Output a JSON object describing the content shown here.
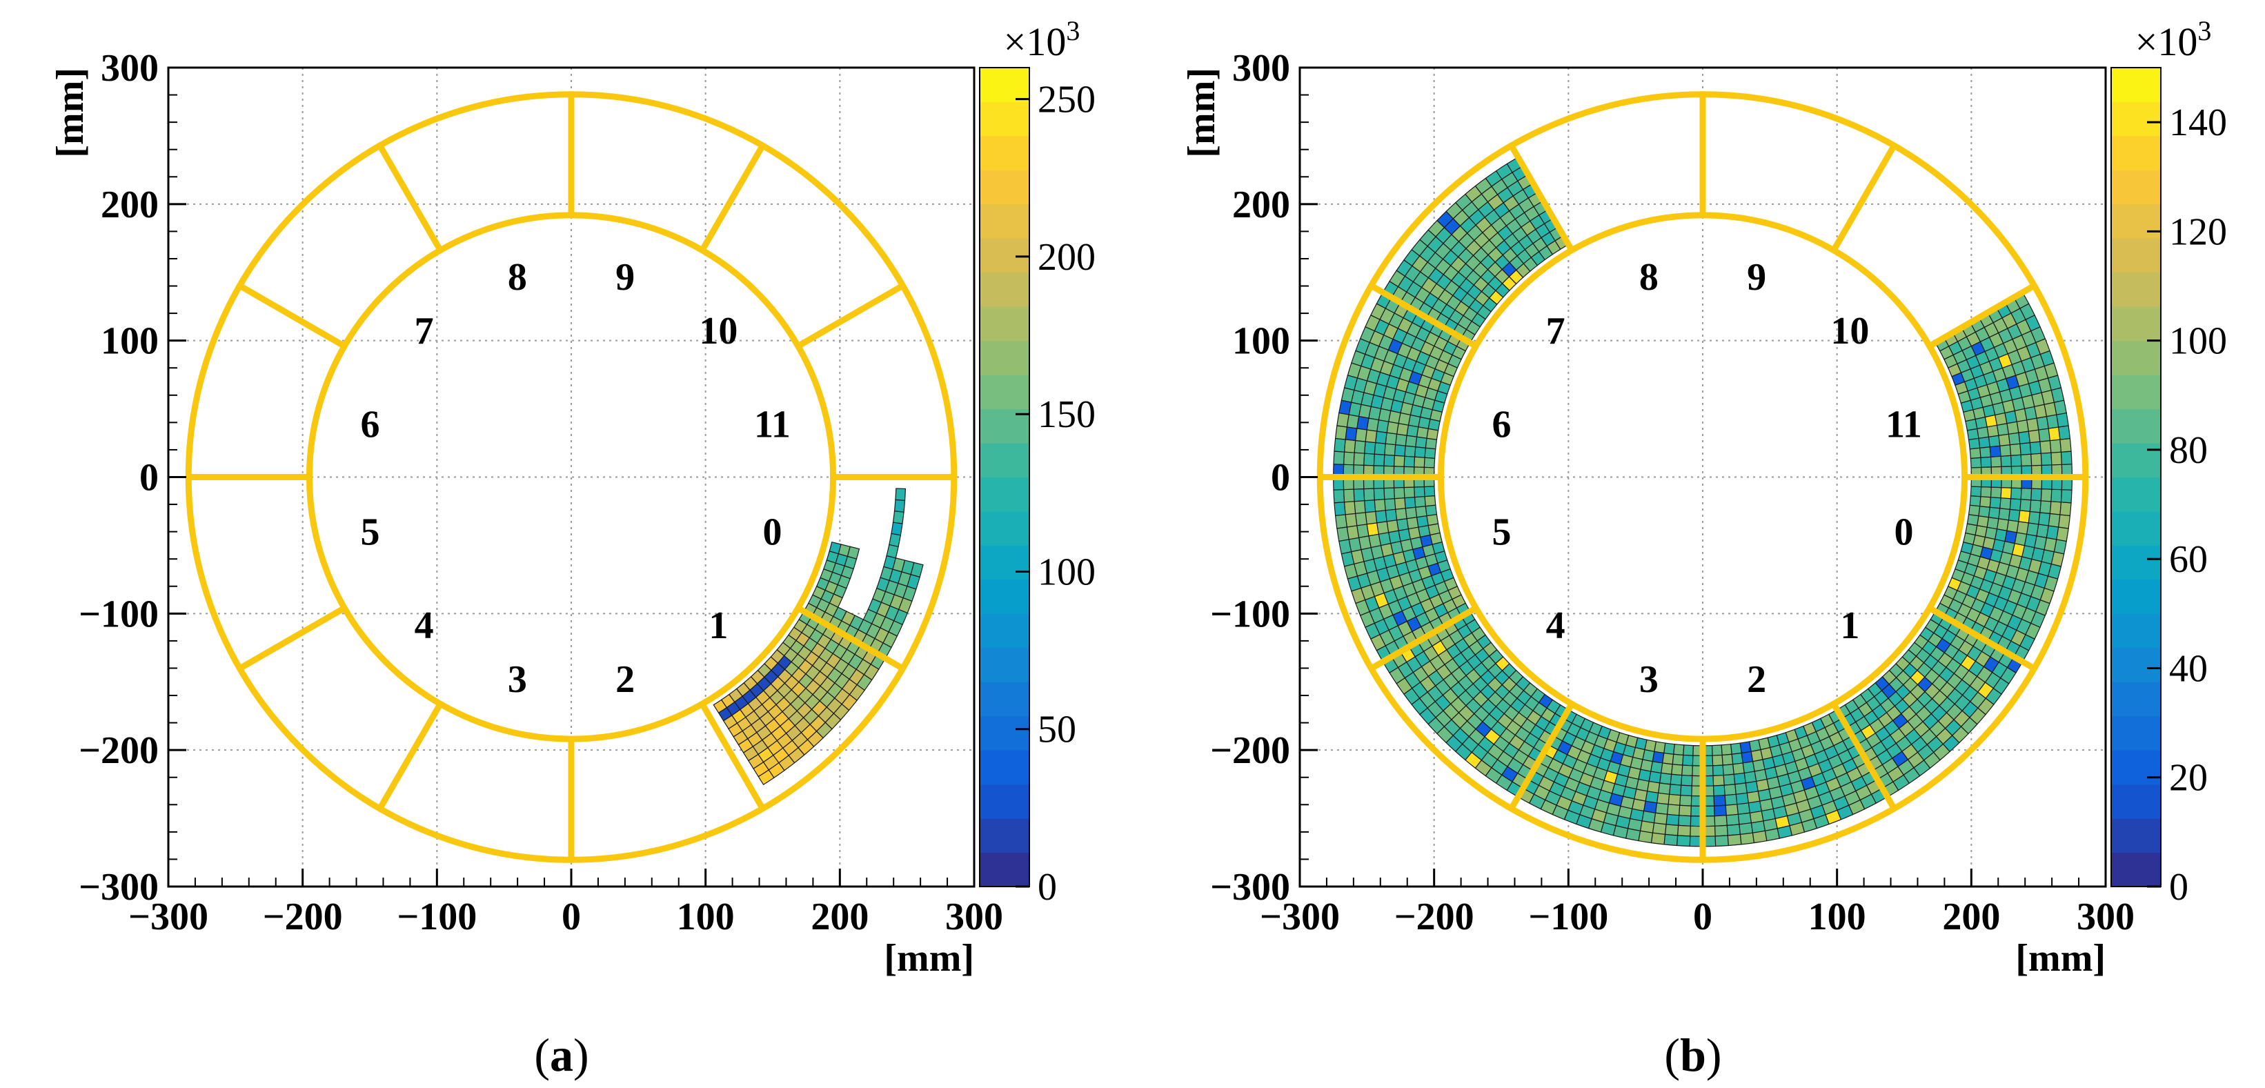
{
  "chart_data": [
    {
      "type": "heatmap",
      "panel_label": "a",
      "xlabel": "[mm]",
      "ylabel": "[mm]",
      "xlim": [
        -300,
        300
      ],
      "ylim": [
        -300,
        300
      ],
      "x_ticks": [
        "−300",
        "−200",
        "−100",
        "0",
        "100",
        "200",
        "300"
      ],
      "y_ticks": [
        "300",
        "200",
        "100",
        "0",
        "−100",
        "−200",
        "−300"
      ],
      "grid": true,
      "colorbar": {
        "range": [
          0,
          260
        ],
        "multiplier_base": "×10",
        "multiplier_exp": "3",
        "ticks": [
          "0",
          "50",
          "100",
          "150",
          "200",
          "250"
        ],
        "tick_values": [
          0,
          50,
          100,
          150,
          200,
          250
        ]
      },
      "sector_labels": [
        "0",
        "1",
        "2",
        "3",
        "4",
        "5",
        "6",
        "7",
        "8",
        "9",
        "10",
        "11"
      ],
      "inner_radius_mm": 195,
      "outer_radius_mm": 285,
      "occupied_region": {
        "from_deg": -58,
        "to_deg": -2,
        "r_min_mm": 200,
        "r_max_mm": 270
      }
    },
    {
      "type": "heatmap",
      "panel_label": "b",
      "xlabel": "[mm]",
      "ylabel": "[mm]",
      "xlim": [
        -300,
        300
      ],
      "ylim": [
        -300,
        300
      ],
      "x_ticks": [
        "−300",
        "−200",
        "−100",
        "0",
        "100",
        "200",
        "300"
      ],
      "y_ticks": [
        "300",
        "200",
        "100",
        "0",
        "−100",
        "−200",
        "−300"
      ],
      "grid": true,
      "colorbar": {
        "range": [
          0,
          150
        ],
        "multiplier_base": "×10",
        "multiplier_exp": "3",
        "ticks": [
          "0",
          "20",
          "40",
          "60",
          "80",
          "100",
          "120",
          "140"
        ],
        "tick_values": [
          0,
          20,
          40,
          60,
          80,
          100,
          120,
          140
        ]
      },
      "sector_labels": [
        "0",
        "1",
        "2",
        "3",
        "4",
        "5",
        "6",
        "7",
        "8",
        "9",
        "10",
        "11"
      ],
      "inner_radius_mm": 195,
      "outer_radius_mm": 285,
      "occupied_region": {
        "from_deg": -240,
        "to_deg": 30,
        "r_min_mm": 200,
        "r_max_mm": 275
      }
    }
  ],
  "captions": {
    "a_open": "(",
    "a_letter": "a",
    "a_close": ")",
    "b_open": "(",
    "b_letter": "b",
    "b_close": ")"
  },
  "colors": {
    "frame": "#f9c80e",
    "palette": [
      "#352a87",
      "#0f5cdd",
      "#1481d6",
      "#06a4ca",
      "#2eb7a4",
      "#87bf77",
      "#d1bb59",
      "#fec832",
      "#f9fb0e"
    ]
  }
}
